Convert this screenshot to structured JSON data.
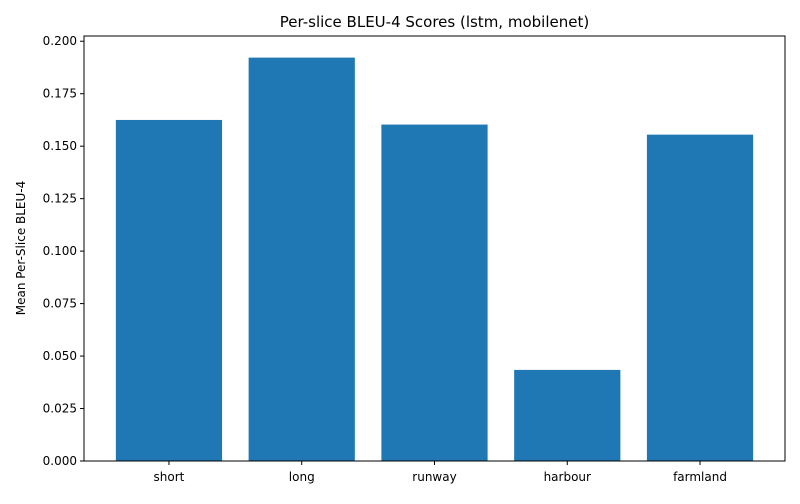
{
  "chart_data": {
    "type": "bar",
    "title": "Per-slice BLEU-4 Scores (lstm, mobilenet)",
    "xlabel": "",
    "ylabel": "Mean Per-Slice BLEU-4",
    "categories": [
      "short",
      "long",
      "runway",
      "harbour",
      "farmland"
    ],
    "values": [
      0.1625,
      0.1922,
      0.1603,
      0.0434,
      0.1555
    ],
    "ylim": [
      0,
      0.2025
    ],
    "yticks": [
      0.0,
      0.025,
      0.05,
      0.075,
      0.1,
      0.125,
      0.15,
      0.175,
      0.2
    ],
    "ytick_labels": [
      "0.000",
      "0.025",
      "0.050",
      "0.075",
      "0.100",
      "0.125",
      "0.150",
      "0.175",
      "0.200"
    ],
    "bar_color": "#1f77b4",
    "grid": false,
    "legend": "none"
  }
}
